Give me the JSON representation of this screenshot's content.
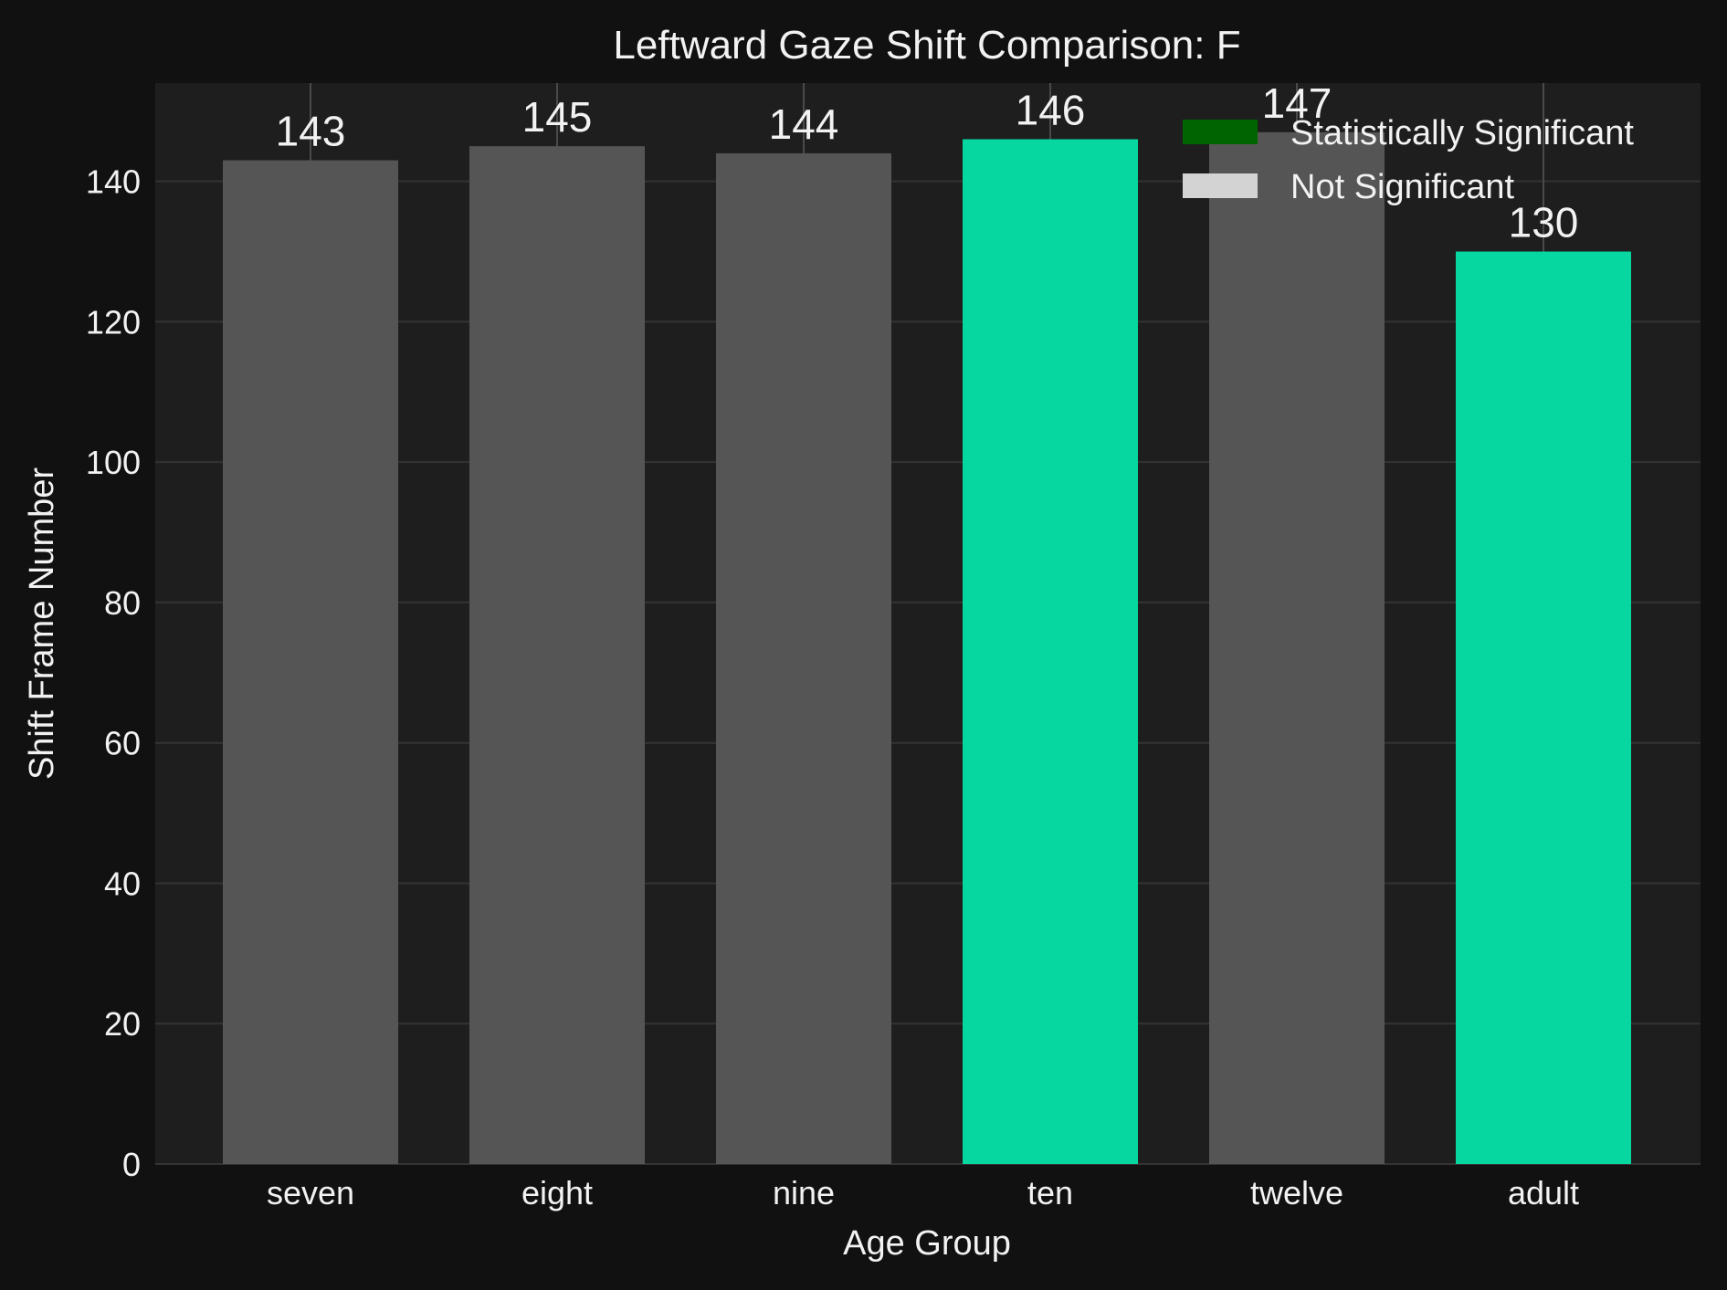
{
  "chart_data": {
    "type": "bar",
    "title": "Leftward Gaze Shift Comparison: F",
    "xlabel": "Age Group",
    "ylabel": "Shift Frame Number",
    "categories": [
      "seven",
      "eight",
      "nine",
      "ten",
      "twelve",
      "adult"
    ],
    "values": [
      143,
      145,
      144,
      146,
      147,
      130
    ],
    "data_labels": [
      "143",
      "145",
      "144",
      "146",
      "147",
      "130"
    ],
    "significant": [
      false,
      false,
      false,
      true,
      false,
      true
    ],
    "ylim": [
      0,
      154
    ],
    "yticks": [
      0,
      20,
      40,
      60,
      80,
      100,
      120,
      140
    ],
    "ytick_labels": [
      "0",
      "20",
      "40",
      "60",
      "80",
      "100",
      "120",
      "140"
    ],
    "grid": true,
    "legend": {
      "position": "top-right",
      "entries": [
        {
          "label": "Statistically Significant",
          "color": "#006400"
        },
        {
          "label": "Not Significant",
          "color": "#d3d3d3"
        }
      ]
    },
    "colors": {
      "background": "#111111",
      "plot_background": "#1e1e1e",
      "significant_bar": "#06d6a0",
      "not_significant_bar": "#555555",
      "grid": "#333333"
    }
  }
}
